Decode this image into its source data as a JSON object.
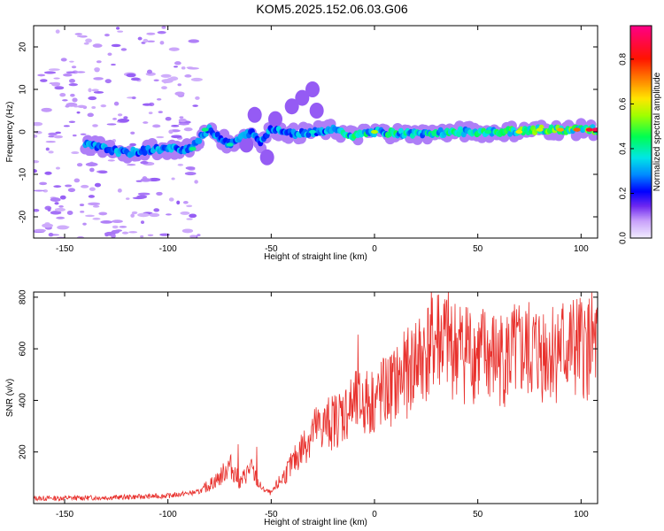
{
  "title": "KOM5.2025.152.06.03.G06",
  "chart_data": [
    {
      "type": "heatmap",
      "xlabel": "Height of straight line (km)",
      "ylabel": "Frequency (Hz)",
      "xlim": [
        -165,
        108
      ],
      "ylim": [
        -25,
        25
      ],
      "xticks": [
        -150,
        -100,
        -50,
        0,
        50,
        100
      ],
      "yticks": [
        -20,
        -10,
        0,
        10,
        20
      ],
      "grid": false,
      "colorbar": {
        "label": "Normalized spectral amplitude",
        "range": [
          0.0,
          0.95
        ],
        "ticks": [
          0.0,
          0.2,
          0.4,
          0.6,
          0.8
        ],
        "colormap": "rainbow-white-to-magenta"
      },
      "ridge": [
        {
          "x": -135,
          "y": -3.5
        },
        {
          "x": -120,
          "y": -5.0
        },
        {
          "x": -105,
          "y": -4.0
        },
        {
          "x": -90,
          "y": -4.0
        },
        {
          "x": -80,
          "y": 0.5
        },
        {
          "x": -70,
          "y": -3.0
        },
        {
          "x": -60,
          "y": 0.0
        },
        {
          "x": -55,
          "y": -2.5
        },
        {
          "x": -50,
          "y": 1.0
        },
        {
          "x": -40,
          "y": -0.5
        },
        {
          "x": -30,
          "y": 0.0
        },
        {
          "x": -20,
          "y": 0.5
        },
        {
          "x": -10,
          "y": -1.0
        },
        {
          "x": 0,
          "y": 0.0
        },
        {
          "x": 20,
          "y": -0.5
        },
        {
          "x": 40,
          "y": 0.0
        },
        {
          "x": 60,
          "y": 0.0
        },
        {
          "x": 80,
          "y": 0.5
        },
        {
          "x": 100,
          "y": 0.5
        },
        {
          "x": 108,
          "y": 0.5
        }
      ]
    },
    {
      "type": "line",
      "xlabel": "Height of straight line (km)",
      "ylabel": "SNR (v/v)",
      "xlim": [
        -165,
        108
      ],
      "ylim": [
        0,
        820
      ],
      "xticks": [
        -150,
        -100,
        -50,
        0,
        50,
        100
      ],
      "yticks": [
        200,
        400,
        600,
        800
      ],
      "grid": false,
      "series": [
        {
          "color": "#e8302c",
          "values": [
            {
              "x": -165,
              "y": 20
            },
            {
              "x": -140,
              "y": 22
            },
            {
              "x": -120,
              "y": 25
            },
            {
              "x": -100,
              "y": 30
            },
            {
              "x": -85,
              "y": 45
            },
            {
              "x": -75,
              "y": 100
            },
            {
              "x": -70,
              "y": 150
            },
            {
              "x": -65,
              "y": 80
            },
            {
              "x": -60,
              "y": 140
            },
            {
              "x": -55,
              "y": 60
            },
            {
              "x": -50,
              "y": 40
            },
            {
              "x": -40,
              "y": 150
            },
            {
              "x": -30,
              "y": 280
            },
            {
              "x": -20,
              "y": 320
            },
            {
              "x": -10,
              "y": 380
            },
            {
              "x": 0,
              "y": 400
            },
            {
              "x": 10,
              "y": 460
            },
            {
              "x": 20,
              "y": 540
            },
            {
              "x": 30,
              "y": 640
            },
            {
              "x": 40,
              "y": 600
            },
            {
              "x": 50,
              "y": 580
            },
            {
              "x": 60,
              "y": 560
            },
            {
              "x": 70,
              "y": 580
            },
            {
              "x": 80,
              "y": 590
            },
            {
              "x": 90,
              "y": 600
            },
            {
              "x": 100,
              "y": 600
            },
            {
              "x": 108,
              "y": 610
            }
          ],
          "spikes": [
            {
              "x": -66,
              "y": 230
            },
            {
              "x": -57,
              "y": 220
            },
            {
              "x": -8,
              "y": 655
            },
            {
              "x": 20,
              "y": 700
            },
            {
              "x": 31,
              "y": 810
            },
            {
              "x": 35,
              "y": 790
            },
            {
              "x": 45,
              "y": 760
            },
            {
              "x": 100,
              "y": 740
            }
          ]
        }
      ]
    }
  ]
}
